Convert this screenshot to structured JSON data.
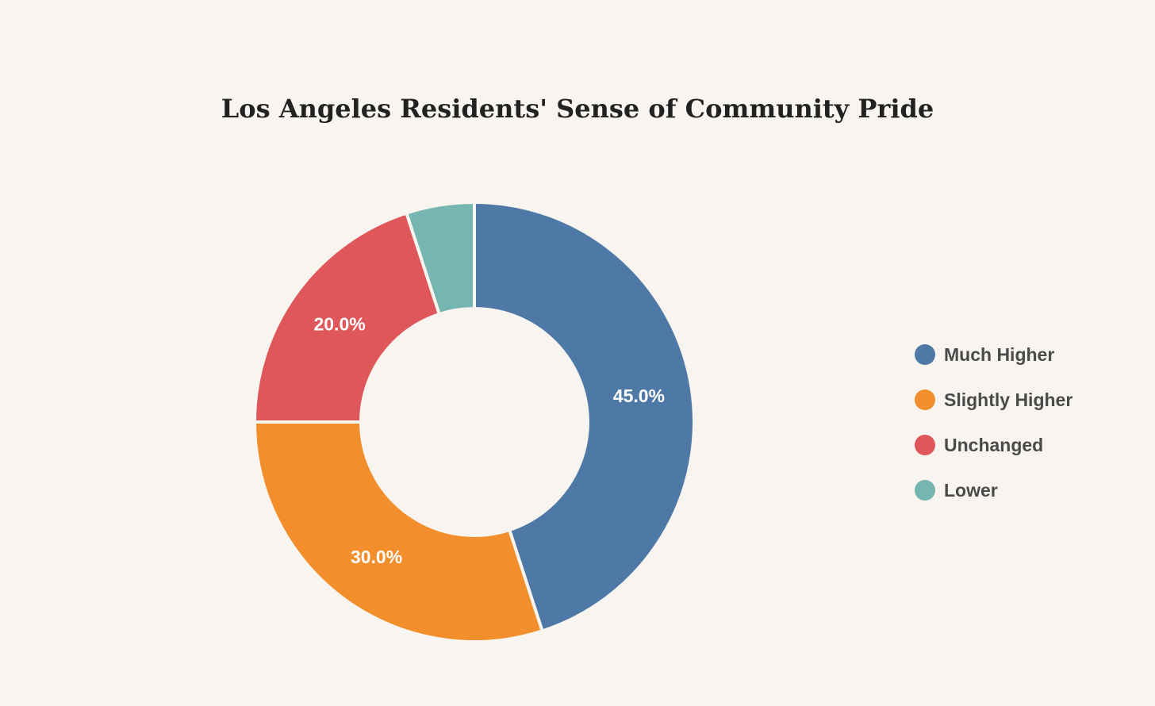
{
  "chart_data": {
    "type": "pie",
    "variant": "donut",
    "title": "Los Angeles Residents' Sense of Community Pride",
    "categories": [
      "Much Higher",
      "Slightly Higher",
      "Unchanged",
      "Lower"
    ],
    "values": [
      45.0,
      30.0,
      20.0,
      5.0
    ],
    "data_labels": [
      "45.0%",
      "30.0%",
      "20.0%",
      ""
    ],
    "colors": [
      "#4e78a6",
      "#f28f2c",
      "#e0575b",
      "#76b6b1"
    ],
    "legend": {
      "position": "right",
      "entries": [
        "Much Higher",
        "Slightly Higher",
        "Unchanged",
        "Lower"
      ]
    }
  }
}
